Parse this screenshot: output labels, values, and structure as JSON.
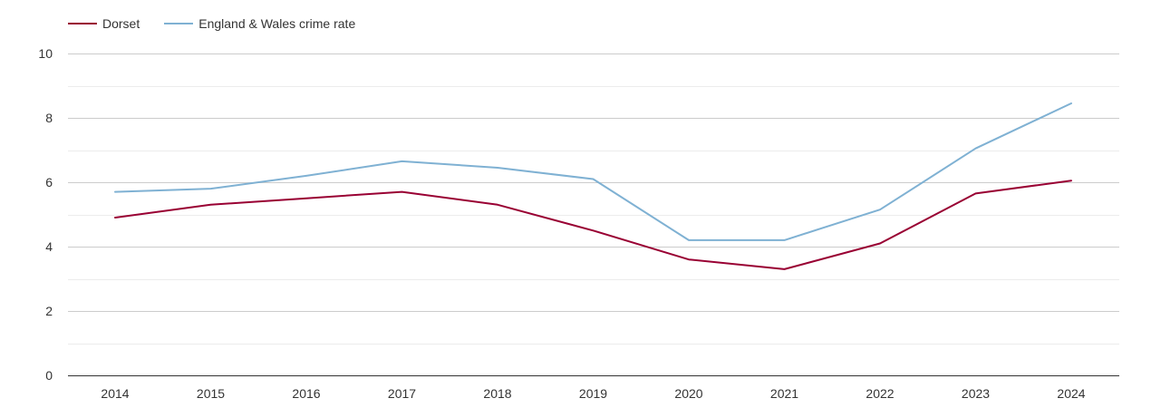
{
  "chart_data": {
    "type": "line",
    "title": "",
    "xlabel": "",
    "ylabel": "",
    "categories": [
      "2014",
      "2015",
      "2016",
      "2017",
      "2018",
      "2019",
      "2020",
      "2021",
      "2022",
      "2023",
      "2024"
    ],
    "ylim": [
      0,
      10
    ],
    "yticks": [
      0,
      2,
      4,
      6,
      8,
      10
    ],
    "grid": true,
    "legend_position": "top-left",
    "series": [
      {
        "name": "Dorset",
        "color": "#990033",
        "values": [
          4.9,
          5.3,
          5.5,
          5.7,
          5.3,
          4.5,
          3.6,
          3.3,
          4.1,
          5.65,
          6.05
        ]
      },
      {
        "name": "England & Wales crime rate",
        "color": "#7fb1d3",
        "values": [
          5.7,
          5.8,
          6.2,
          6.65,
          6.45,
          6.1,
          4.2,
          4.2,
          5.15,
          7.05,
          8.45
        ]
      }
    ]
  }
}
